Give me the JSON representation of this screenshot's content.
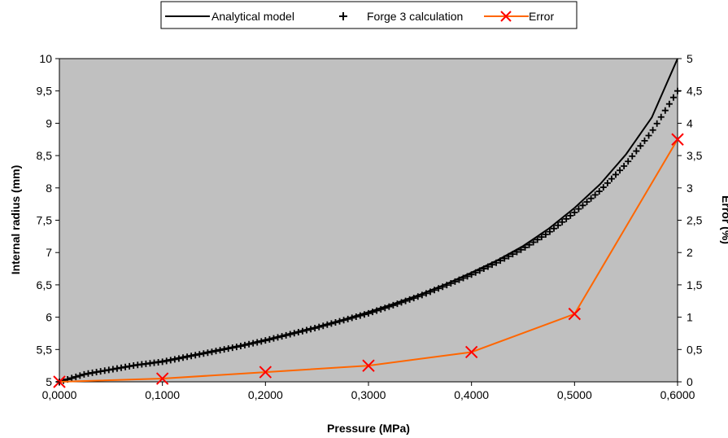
{
  "chart_data": {
    "type": "line",
    "xlabel": "Pressure (MPa)",
    "ylabel": "Internal radius (mm)",
    "y2label": "Error (%)",
    "xlim": [
      0,
      0.6
    ],
    "ylim": [
      5,
      10
    ],
    "y2lim": [
      0,
      5
    ],
    "x_ticks": [
      "0,0000",
      "0,1000",
      "0,2000",
      "0,3000",
      "0,4000",
      "0,5000",
      "0,6000"
    ],
    "y_ticks": [
      "5",
      "5,5",
      "6",
      "6,5",
      "7",
      "7,5",
      "8",
      "8,5",
      "9",
      "9,5",
      "10"
    ],
    "y2_ticks": [
      "0",
      "0,5",
      "1",
      "1,5",
      "2",
      "2,5",
      "3",
      "3,5",
      "4",
      "4,5",
      "5"
    ],
    "grid": false,
    "legend_position": "top",
    "plot_background": "#c0c0c0",
    "series": [
      {
        "name": "Analytical model",
        "axis": "left",
        "color": "#000000",
        "marker": "none",
        "x": [
          0,
          0.025,
          0.05,
          0.075,
          0.1,
          0.125,
          0.15,
          0.175,
          0.2,
          0.225,
          0.25,
          0.275,
          0.3,
          0.325,
          0.35,
          0.375,
          0.4,
          0.425,
          0.45,
          0.475,
          0.5,
          0.525,
          0.55,
          0.575,
          0.6
        ],
        "y": [
          5.0,
          5.12,
          5.19,
          5.26,
          5.32,
          5.4,
          5.48,
          5.56,
          5.65,
          5.75,
          5.85,
          5.96,
          6.08,
          6.21,
          6.35,
          6.51,
          6.69,
          6.88,
          7.1,
          7.37,
          7.69,
          8.06,
          8.52,
          9.09,
          10.0
        ]
      },
      {
        "name": "Forge 3 calculation",
        "axis": "left",
        "color": "#000000",
        "marker": "plus",
        "x": [
          0,
          0.025,
          0.05,
          0.075,
          0.1,
          0.125,
          0.15,
          0.175,
          0.2,
          0.225,
          0.25,
          0.275,
          0.3,
          0.325,
          0.35,
          0.375,
          0.4,
          0.425,
          0.45,
          0.475,
          0.5,
          0.525,
          0.55,
          0.575,
          0.6
        ],
        "y": [
          5.0,
          5.12,
          5.19,
          5.26,
          5.31,
          5.39,
          5.47,
          5.55,
          5.64,
          5.74,
          5.84,
          5.95,
          6.06,
          6.19,
          6.33,
          6.49,
          6.66,
          6.85,
          7.06,
          7.31,
          7.62,
          7.96,
          8.37,
          8.87,
          9.5
        ]
      },
      {
        "name": "Error",
        "axis": "right",
        "color": "#ff6600",
        "marker": "x",
        "marker_color": "#ff0000",
        "x": [
          0,
          0.1,
          0.2,
          0.3,
          0.4,
          0.5,
          0.6
        ],
        "y": [
          0,
          0.05,
          0.15,
          0.25,
          0.46,
          1.05,
          3.75
        ]
      }
    ]
  }
}
